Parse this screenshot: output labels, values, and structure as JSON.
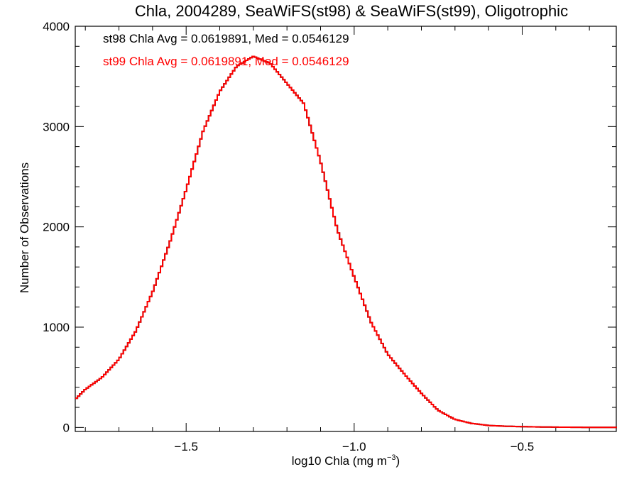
{
  "chart_data": {
    "type": "line",
    "title": "Chla, 2004289, SeaWiFS(st98) & SeaWiFS(st99), Oligotrophic",
    "xlabel_main": "log10 Chla (mg m",
    "xlabel_sup": "−3",
    "xlabel_close": ")",
    "ylabel": "Number of Observations",
    "xlim": [
      -1.83,
      -0.22
    ],
    "ylim": [
      -40,
      4000
    ],
    "x_ticks": [
      -1.5,
      -1.0,
      -0.5
    ],
    "x_tick_labels": [
      "−1.5",
      "−1.0",
      "−0.5"
    ],
    "y_ticks": [
      0,
      1000,
      2000,
      3000,
      4000
    ],
    "y_tick_labels": [
      "0",
      "1000",
      "2000",
      "3000",
      "4000"
    ],
    "grid": false,
    "annotations": [
      {
        "text": "st98 Chla Avg = 0.0619891, Med = 0.0546129",
        "color": "#000000"
      },
      {
        "text": "st99 Chla Avg = 0.0619891, Med = 0.0546129",
        "color": "#ff0000"
      }
    ],
    "colors": {
      "st98": "#000000",
      "st99": "#ff0000"
    },
    "bin_width": 0.0065,
    "x": [
      -1.83,
      -1.8,
      -1.75,
      -1.7,
      -1.65,
      -1.6,
      -1.55,
      -1.5,
      -1.45,
      -1.4,
      -1.35,
      -1.3,
      -1.25,
      -1.2,
      -1.15,
      -1.1,
      -1.05,
      -1.0,
      -0.95,
      -0.9,
      -0.85,
      -0.8,
      -0.75,
      -0.7,
      -0.65,
      -0.6,
      -0.55,
      -0.5,
      -0.45,
      -0.4,
      -0.3,
      -0.22
    ],
    "series": [
      {
        "name": "st98",
        "values": [
          280,
          380,
          500,
          680,
          960,
          1350,
          1830,
          2370,
          2950,
          3350,
          3600,
          3700,
          3630,
          3430,
          3230,
          2650,
          1970,
          1500,
          1050,
          730,
          530,
          340,
          170,
          80,
          40,
          20,
          12,
          8,
          5,
          3,
          1,
          0
        ]
      },
      {
        "name": "st99",
        "values": [
          280,
          380,
          500,
          680,
          960,
          1350,
          1830,
          2370,
          2950,
          3350,
          3600,
          3700,
          3630,
          3430,
          3230,
          2650,
          1970,
          1500,
          1050,
          730,
          530,
          340,
          170,
          80,
          40,
          20,
          12,
          8,
          5,
          3,
          1,
          0
        ]
      }
    ]
  }
}
